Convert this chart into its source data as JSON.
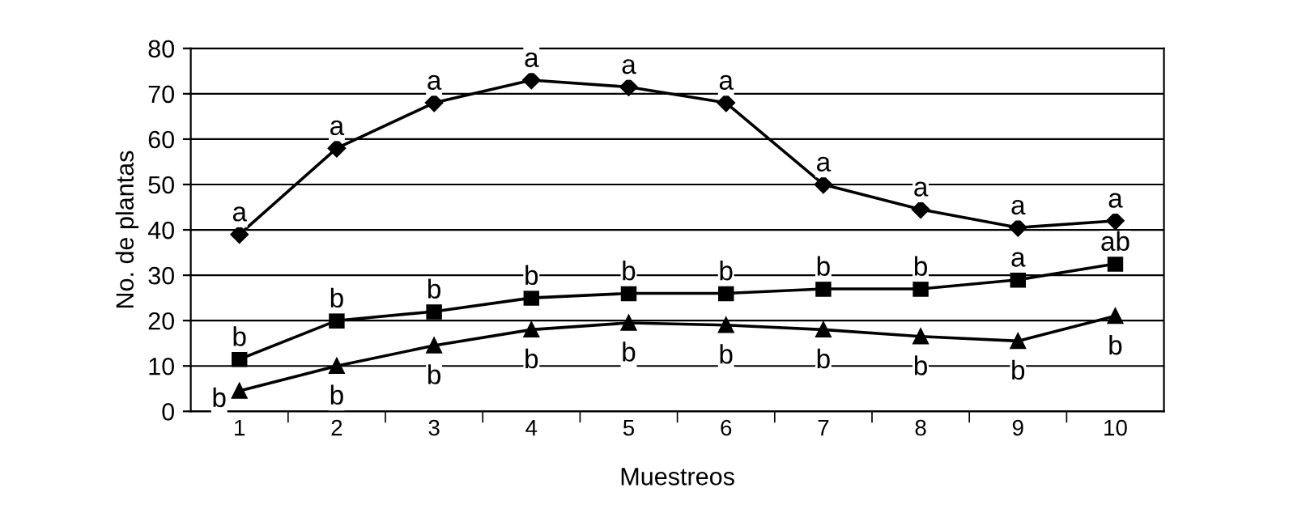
{
  "chart_data": {
    "type": "line",
    "xlabel": "Muestreos",
    "ylabel": "No. de plantas",
    "categories": [
      "1",
      "2",
      "3",
      "4",
      "5",
      "6",
      "7",
      "8",
      "9",
      "10"
    ],
    "ylim": [
      0,
      80
    ],
    "yticks": [
      0,
      10,
      20,
      30,
      40,
      50,
      60,
      70,
      80
    ],
    "grid": "y",
    "series": [
      {
        "color": "#000000",
        "marker": "diamond",
        "values": [
          39,
          58,
          68,
          73,
          71.5,
          68,
          50,
          44.5,
          40.5,
          42
        ],
        "value_labels": [
          "a",
          "a",
          "a",
          "a",
          "a",
          "a",
          "a",
          "a",
          "a",
          "a"
        ]
      },
      {
        "color": "#000000",
        "marker": "square",
        "values": [
          11.5,
          20,
          22,
          25,
          26,
          26,
          27,
          27,
          29,
          32.5
        ],
        "value_labels": [
          "b",
          "b",
          "b",
          "b",
          "b",
          "b",
          "b",
          "b",
          "a",
          "ab"
        ]
      },
      {
        "color": "#000000",
        "marker": "triangle",
        "values": [
          4.5,
          10,
          14.5,
          18,
          19.5,
          19,
          18,
          16.5,
          15.5,
          21
        ],
        "value_labels": [
          "b",
          "b",
          "b",
          "b",
          "b",
          "b",
          "b",
          "b",
          "b",
          "b"
        ]
      }
    ]
  }
}
